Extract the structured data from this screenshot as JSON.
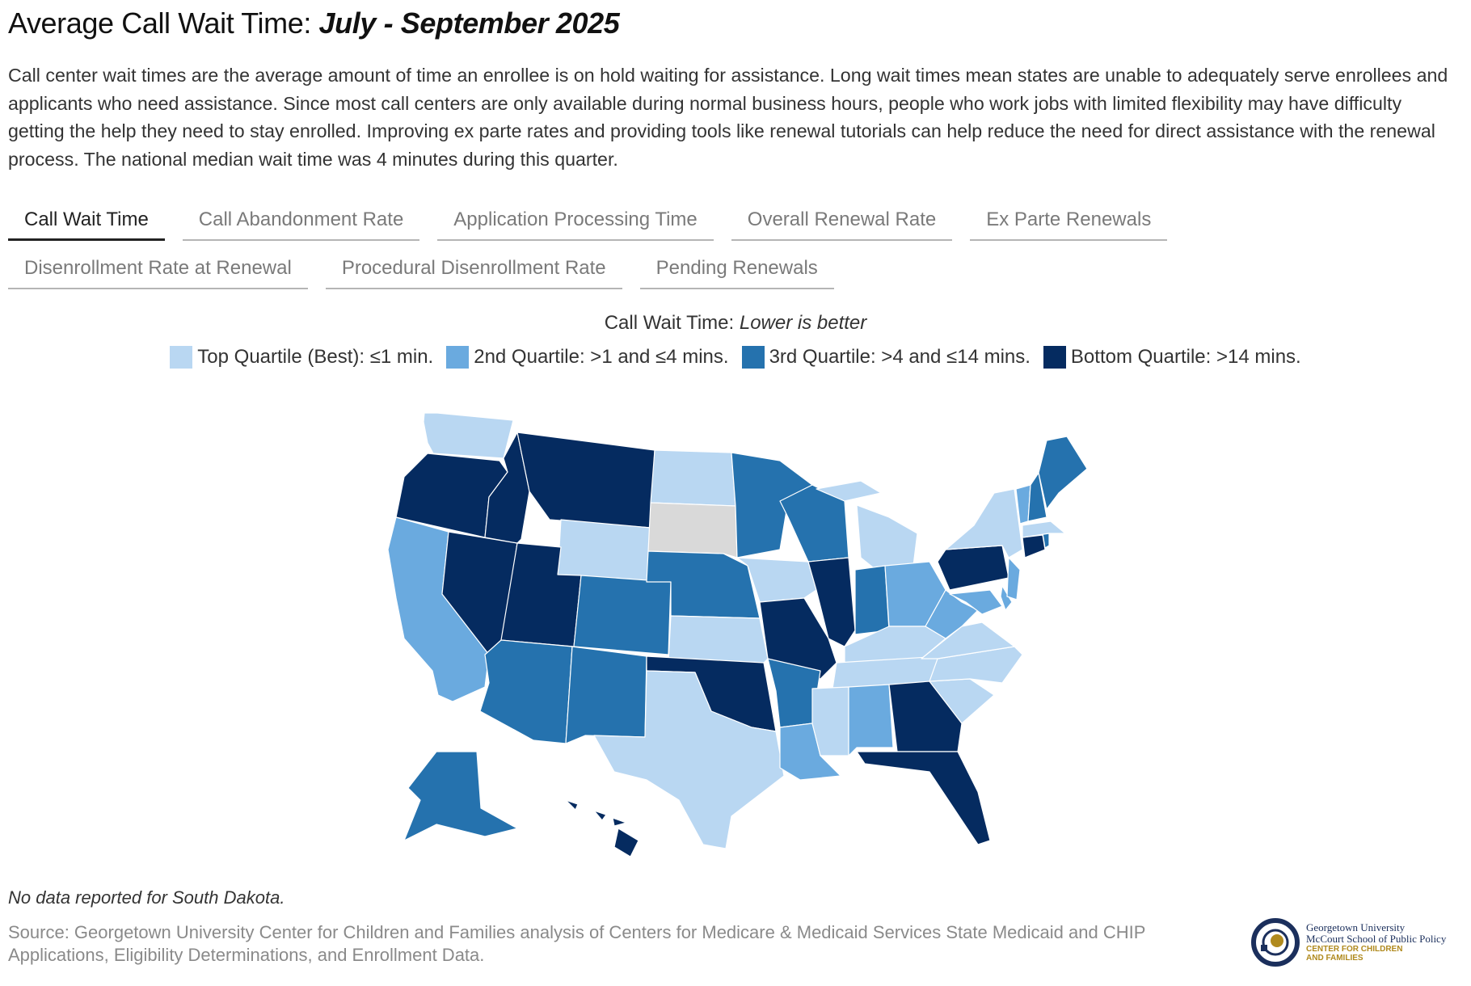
{
  "title": {
    "main": "Average Call Wait Time: ",
    "emphasis": "July - September 2025"
  },
  "description": "Call center wait times are the average amount of time an enrollee is on hold waiting for assistance. Long wait times mean states are unable to adequately serve enrollees and applicants who need assistance. Since most call centers are only available during normal business hours, people who work jobs with limited flexibility may have difficulty getting the help they need to stay enrolled. Improving ex parte rates and providing tools like renewal tutorials can help reduce the need for direct assistance with the renewal process. The national median wait time was 4 minutes during this quarter.",
  "tabs": [
    {
      "label": "Call Wait Time",
      "active": true
    },
    {
      "label": "Call Abandonment Rate",
      "active": false
    },
    {
      "label": "Application Processing Time",
      "active": false
    },
    {
      "label": "Overall Renewal Rate",
      "active": false
    },
    {
      "label": "Ex Parte Renewals",
      "active": false
    },
    {
      "label": "Disenrollment Rate at Renewal",
      "active": false
    },
    {
      "label": "Procedural Disenrollment Rate",
      "active": false
    },
    {
      "label": "Pending Renewals",
      "active": false
    }
  ],
  "legend": {
    "title": "Call Wait Time: ",
    "title_emphasis": "Lower is better",
    "items": [
      {
        "label": "Top Quartile (Best): ≤1 min.",
        "color": "#b9d7f2"
      },
      {
        "label": "2nd Quartile: >1 and ≤4 mins.",
        "color": "#6aaadf"
      },
      {
        "label": "3rd Quartile: >4 and ≤14 mins.",
        "color": "#2572ae"
      },
      {
        "label": "Bottom Quartile: >14 mins.",
        "color": "#052b60"
      }
    ],
    "no_data_color": "#d9d9d9"
  },
  "map_data": {
    "states": {
      "WA": 1,
      "OR": 4,
      "CA": 2,
      "NV": 4,
      "ID": 4,
      "MT": 4,
      "WY": 1,
      "UT": 4,
      "AZ": 3,
      "NM": 3,
      "CO": 3,
      "ND": 1,
      "SD": 0,
      "NE": 3,
      "KS": 1,
      "OK": 4,
      "TX": 1,
      "MN": 3,
      "IA": 1,
      "MO": 4,
      "AR": 3,
      "LA": 2,
      "WI": 3,
      "IL": 4,
      "MI": 1,
      "IN": 3,
      "OH": 2,
      "KY": 1,
      "TN": 1,
      "MS": 1,
      "AL": 2,
      "GA": 4,
      "FL": 4,
      "SC": 1,
      "NC": 1,
      "VA": 1,
      "WV": 2,
      "MD": 2,
      "DE": 2,
      "PA": 4,
      "NJ": 2,
      "NY": 1,
      "CT": 4,
      "RI": 3,
      "MA": 1,
      "VT": 2,
      "NH": 3,
      "ME": 3,
      "AK": 3,
      "HI": 4
    }
  },
  "footnote": "No data reported for South Dakota.",
  "source": "Source: Georgetown University Center for Children and Families analysis of Centers for Medicare & Medicaid Services State Medicaid and CHIP Applications, Eligibility Determinations, and Enrollment Data.",
  "logo": {
    "line1": "Georgetown University",
    "line2": "McCourt School of Public Policy",
    "line3": "CENTER FOR CHILDREN",
    "line4": "AND FAMILIES"
  }
}
